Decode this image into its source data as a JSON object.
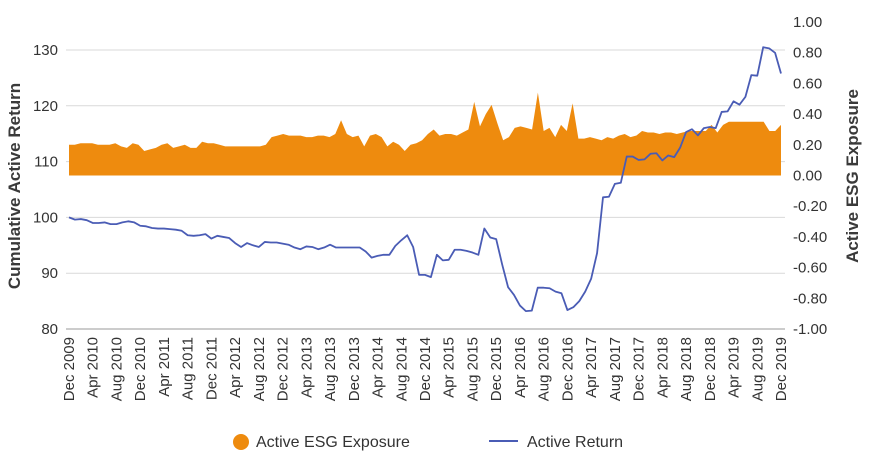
{
  "chart_data": {
    "type": "line",
    "title": "",
    "ylabel_left": "Cumulative Active Return",
    "ylabel_right": "Active ESG Exposure",
    "ylim_left": [
      80,
      130
    ],
    "ylim_right": [
      -1.0,
      1.0
    ],
    "yticks_left": [
      "80",
      "90",
      "100",
      "110",
      "120",
      "130"
    ],
    "yticks_right": [
      "-1.00",
      "-0.80",
      "-0.60",
      "-0.40",
      "-0.20",
      "0.00",
      "0.20",
      "0.40",
      "0.60",
      "0.80",
      "1.00"
    ],
    "xtick_labels": [
      "Dec 2009",
      "Apr 2010",
      "Aug 2010",
      "Dec 2010",
      "Apr 2011",
      "Aug 2011",
      "Dec 2011",
      "Apr 2012",
      "Aug 2012",
      "Dec 2012",
      "Apr 2013",
      "Aug 2013",
      "Dec 2013",
      "Apr 2014",
      "Aug 2014",
      "Dec 2014",
      "Apr 2015",
      "Aug 2015",
      "Dec 2015",
      "Apr 2016",
      "Aug 2016",
      "Dec 2016",
      "Apr 2017",
      "Aug 2017",
      "Dec 2017",
      "Apr 2018",
      "Aug 2018",
      "Dec 2018",
      "Apr 2019",
      "Aug 2019",
      "Dec 2019"
    ],
    "grid": true,
    "legend_position": "bottom",
    "series": [
      {
        "name": "Active ESG Exposure",
        "kind": "area",
        "axis": "right",
        "color": "#EE8B0E",
        "values": [
          0.2,
          0.2,
          0.21,
          0.21,
          0.21,
          0.2,
          0.2,
          0.2,
          0.21,
          0.19,
          0.18,
          0.21,
          0.2,
          0.16,
          0.17,
          0.18,
          0.2,
          0.21,
          0.18,
          0.19,
          0.2,
          0.18,
          0.18,
          0.22,
          0.21,
          0.21,
          0.2,
          0.19,
          0.19,
          0.19,
          0.19,
          0.19,
          0.19,
          0.19,
          0.2,
          0.25,
          0.26,
          0.27,
          0.26,
          0.26,
          0.26,
          0.25,
          0.25,
          0.26,
          0.26,
          0.25,
          0.27,
          0.36,
          0.27,
          0.25,
          0.26,
          0.19,
          0.26,
          0.27,
          0.25,
          0.19,
          0.22,
          0.2,
          0.16,
          0.2,
          0.21,
          0.23,
          0.27,
          0.3,
          0.26,
          0.27,
          0.27,
          0.26,
          0.28,
          0.3,
          0.48,
          0.32,
          0.4,
          0.46,
          0.34,
          0.23,
          0.25,
          0.31,
          0.32,
          0.31,
          0.3,
          0.54,
          0.29,
          0.31,
          0.25,
          0.33,
          0.29,
          0.47,
          0.24,
          0.24,
          0.25,
          0.24,
          0.23,
          0.25,
          0.24,
          0.26,
          0.27,
          0.25,
          0.26,
          0.29,
          0.28,
          0.28,
          0.27,
          0.28,
          0.28,
          0.27,
          0.28,
          0.29,
          0.29,
          0.29,
          0.29,
          0.33,
          0.28,
          0.33,
          0.35,
          0.35,
          0.35,
          0.35,
          0.35,
          0.35,
          0.35,
          0.29,
          0.29,
          0.33
        ]
      },
      {
        "name": "Active Return",
        "kind": "line",
        "axis": "left",
        "color": "#4A5CB5",
        "values": [
          100.0,
          99.6,
          99.7,
          99.5,
          99.0,
          99.0,
          99.1,
          98.8,
          98.8,
          99.1,
          99.3,
          99.1,
          98.5,
          98.4,
          98.1,
          98.0,
          98.0,
          97.9,
          97.8,
          97.6,
          96.8,
          96.7,
          96.8,
          97.0,
          96.2,
          96.7,
          96.5,
          96.3,
          95.4,
          94.7,
          95.4,
          95.0,
          94.7,
          95.6,
          95.5,
          95.5,
          95.3,
          95.1,
          94.6,
          94.3,
          94.8,
          94.7,
          94.3,
          94.6,
          95.1,
          94.6,
          94.6,
          94.6,
          94.6,
          94.6,
          93.9,
          92.8,
          93.1,
          93.3,
          93.3,
          94.9,
          95.9,
          96.8,
          94.7,
          89.7,
          89.7,
          89.3,
          93.3,
          92.3,
          92.4,
          94.2,
          94.2,
          94.0,
          93.7,
          93.3,
          98.0,
          96.4,
          96.1,
          91.6,
          87.5,
          86.1,
          84.2,
          83.2,
          83.3,
          87.4,
          87.4,
          87.3,
          86.7,
          86.4,
          83.4,
          83.9,
          85.0,
          86.7,
          89.0,
          93.6,
          103.6,
          103.7,
          106.0,
          106.2,
          110.9,
          110.9,
          110.3,
          110.4,
          111.4,
          111.5,
          110.2,
          111.1,
          110.8,
          112.5,
          115.3,
          115.8,
          114.7,
          116.0,
          116.2,
          116.0,
          118.9,
          119.0,
          120.8,
          120.2,
          121.6,
          125.5,
          125.4,
          130.5,
          130.3,
          129.5,
          125.8
        ]
      }
    ]
  },
  "legend": {
    "items": [
      {
        "label": "Active ESG Exposure",
        "color": "#EE8B0E"
      },
      {
        "label": "Active Return",
        "color": "#4A5CB5"
      }
    ]
  }
}
